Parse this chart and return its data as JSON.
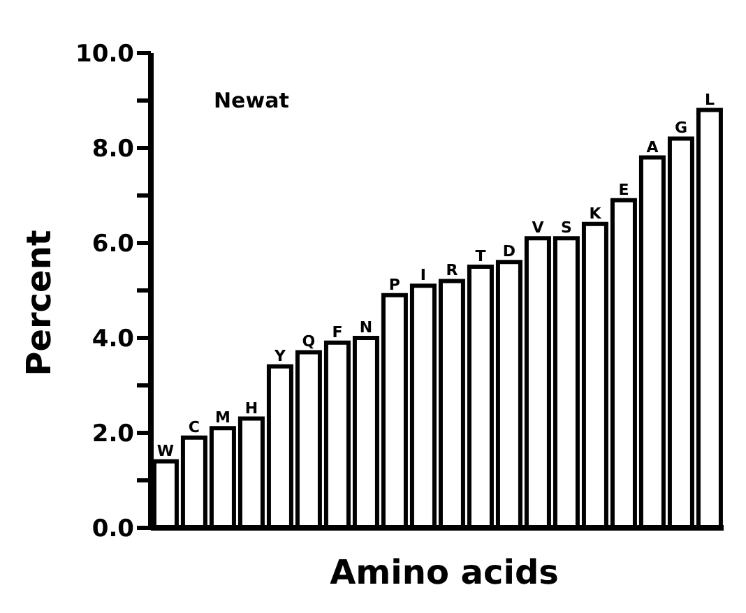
{
  "chart_data": {
    "type": "bar",
    "xlabel": "Amino acids",
    "ylabel": "Percent",
    "annotations": [
      "Newat"
    ],
    "categories": [
      "W",
      "C",
      "M",
      "H",
      "Y",
      "Q",
      "F",
      "N",
      "P",
      "I",
      "R",
      "T",
      "D",
      "V",
      "S",
      "K",
      "E",
      "A",
      "G",
      "L"
    ],
    "values": [
      1.4,
      1.9,
      2.1,
      2.3,
      3.4,
      3.7,
      3.9,
      4.0,
      4.9,
      5.1,
      5.2,
      5.5,
      5.6,
      6.1,
      6.1,
      6.4,
      6.9,
      7.8,
      8.2,
      8.8
    ],
    "color": "#ffffff",
    "ylim": [
      0,
      10
    ],
    "yticks": [
      {
        "value": 0,
        "label": "0.0"
      },
      {
        "value": 1,
        "label": null
      },
      {
        "value": 2,
        "label": "2.0"
      },
      {
        "value": 3,
        "label": null
      },
      {
        "value": 4,
        "label": "4.0"
      },
      {
        "value": 5,
        "label": null
      },
      {
        "value": 6,
        "label": "6.0"
      },
      {
        "value": 7,
        "label": null
      },
      {
        "value": 8,
        "label": "8.0"
      },
      {
        "value": 9,
        "label": null
      },
      {
        "value": 10,
        "label": "10.0"
      }
    ],
    "grid": false,
    "legend": false
  }
}
